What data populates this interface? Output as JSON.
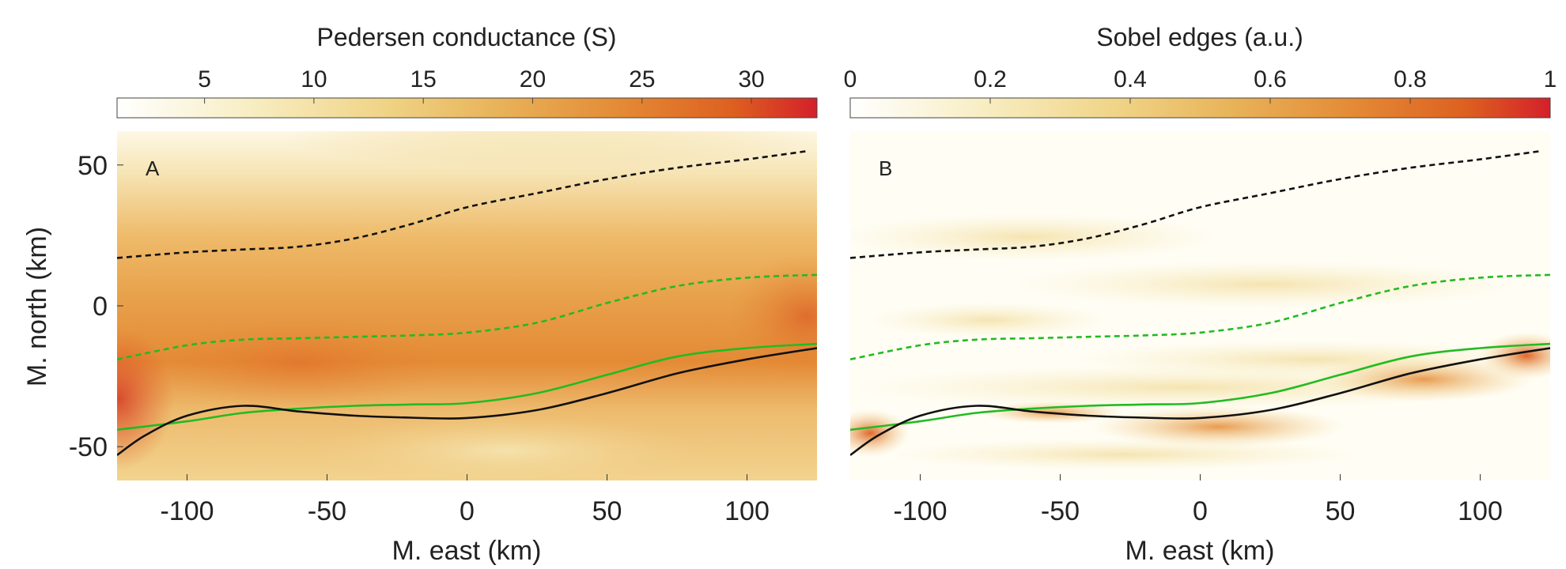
{
  "chart_data": [
    {
      "type": "heatmap",
      "panel_label": "A",
      "colorbar": {
        "title": "Pedersen conductance (S)",
        "ticks": [
          5,
          10,
          15,
          20,
          25,
          30
        ],
        "range": [
          1,
          33
        ]
      },
      "xlabel": "M. east (km)",
      "ylabel": "M. north (km)",
      "xlim": [
        -125,
        125
      ],
      "ylim": [
        -62,
        62
      ],
      "xticks": [
        -100,
        -50,
        0,
        50,
        100
      ],
      "yticks": [
        50,
        0,
        -50
      ],
      "lines": [
        {
          "style": "dashed",
          "color": "#111111",
          "x": [
            -125,
            -100,
            -80,
            -60,
            -40,
            -20,
            0,
            25,
            50,
            75,
            100,
            122
          ],
          "y": [
            17,
            19,
            20,
            21,
            24,
            29,
            35,
            40,
            45,
            49,
            52,
            55
          ]
        },
        {
          "style": "dashed",
          "color": "#22bb22",
          "x": [
            -125,
            -100,
            -80,
            -60,
            -40,
            -20,
            0,
            25,
            50,
            75,
            100,
            125
          ],
          "y": [
            -19,
            -14,
            -12,
            -11.5,
            -11,
            -10.5,
            -9.5,
            -6,
            1,
            7,
            10,
            11
          ]
        },
        {
          "style": "solid",
          "color": "#22bb22",
          "x": [
            -125,
            -100,
            -80,
            -60,
            -40,
            -20,
            0,
            25,
            50,
            75,
            100,
            125
          ],
          "y": [
            -44,
            -41,
            -38,
            -36.5,
            -35.5,
            -35,
            -34.5,
            -31,
            -24.5,
            -18,
            -15,
            -13.5
          ]
        },
        {
          "style": "solid",
          "color": "#111111",
          "x": [
            -125,
            -115,
            -100,
            -80,
            -60,
            -40,
            -20,
            0,
            25,
            50,
            75,
            100,
            125
          ],
          "y": [
            -53,
            -46,
            -39,
            -35.5,
            -37.5,
            -39,
            -39.7,
            -39.8,
            -37,
            -31,
            -24,
            -19,
            -15
          ]
        }
      ]
    },
    {
      "type": "heatmap",
      "panel_label": "B",
      "colorbar": {
        "title": "Sobel edges (a.u.)",
        "ticks": [
          0,
          0.2,
          0.4,
          0.6,
          0.8,
          1
        ],
        "range": [
          0,
          1
        ]
      },
      "xlabel": "M. east (km)",
      "ylabel": "",
      "xlim": [
        -125,
        125
      ],
      "ylim": [
        -62,
        62
      ],
      "xticks": [
        -100,
        -50,
        0,
        50,
        100
      ],
      "yticks": [],
      "lines": [
        {
          "style": "dashed",
          "color": "#111111",
          "x": [
            -125,
            -100,
            -80,
            -60,
            -40,
            -20,
            0,
            25,
            50,
            75,
            100,
            122
          ],
          "y": [
            17,
            19,
            20,
            21,
            24,
            29,
            35,
            40,
            45,
            49,
            52,
            55
          ]
        },
        {
          "style": "dashed",
          "color": "#22bb22",
          "x": [
            -125,
            -100,
            -80,
            -60,
            -40,
            -20,
            0,
            25,
            50,
            75,
            100,
            125
          ],
          "y": [
            -19,
            -14,
            -12,
            -11.5,
            -11,
            -10.5,
            -9.5,
            -6,
            1,
            7,
            10,
            11
          ]
        },
        {
          "style": "solid",
          "color": "#22bb22",
          "x": [
            -125,
            -100,
            -80,
            -60,
            -40,
            -20,
            0,
            25,
            50,
            75,
            100,
            125
          ],
          "y": [
            -44,
            -41,
            -38,
            -36.5,
            -35.5,
            -35,
            -34.5,
            -31,
            -24.5,
            -18,
            -15,
            -13.5
          ]
        },
        {
          "style": "solid",
          "color": "#111111",
          "x": [
            -125,
            -115,
            -100,
            -80,
            -60,
            -40,
            -20,
            0,
            25,
            50,
            75,
            100,
            125
          ],
          "y": [
            -53,
            -46,
            -39,
            -35.5,
            -37.5,
            -39,
            -39.7,
            -39.8,
            -37,
            -31,
            -24,
            -19,
            -15
          ]
        }
      ]
    }
  ],
  "colormap": [
    "#ffffff",
    "#f8efc6",
    "#f0d487",
    "#e8b258",
    "#e48a35",
    "#dd6020",
    "#d4202a"
  ]
}
